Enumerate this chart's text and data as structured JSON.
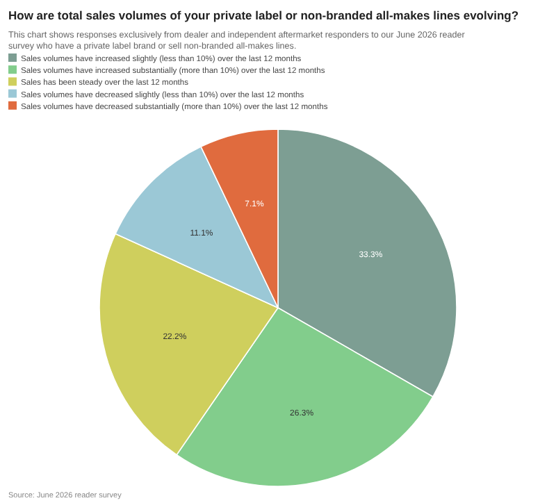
{
  "chart_data": {
    "type": "pie",
    "title": "How are total sales volumes of your private label or non-branded all-makes lines evolving?",
    "subtitle": "This chart shows responses exclusively from dealer and independent aftermarket responders to our June 2026 reader survey who have a private label brand or sell non-branded all-makes lines.",
    "categories": [
      "Sales volumes have increased slightly (less than 10%) over the last 12 months",
      "Sales volumes have increased substantially (more than 10%) over the last 12 months",
      "Sales has been steady over the last 12 months",
      "Sales volumes have decreased slightly (less than 10%) over the last 12 months",
      "Sales volumes have decreased substantially (more than 10%) over the last 12 months"
    ],
    "values": [
      33.3,
      26.3,
      22.2,
      11.1,
      7.1
    ],
    "value_labels": [
      "33.3%",
      "26.3%",
      "22.2%",
      "11.1%",
      "7.1%"
    ],
    "colors": [
      "#7d9e93",
      "#82cd8c",
      "#cfcf5d",
      "#9bc8d6",
      "#e06b3e"
    ],
    "legend": "top left",
    "annotations": [
      "Source: June 2026 reader survey"
    ]
  }
}
